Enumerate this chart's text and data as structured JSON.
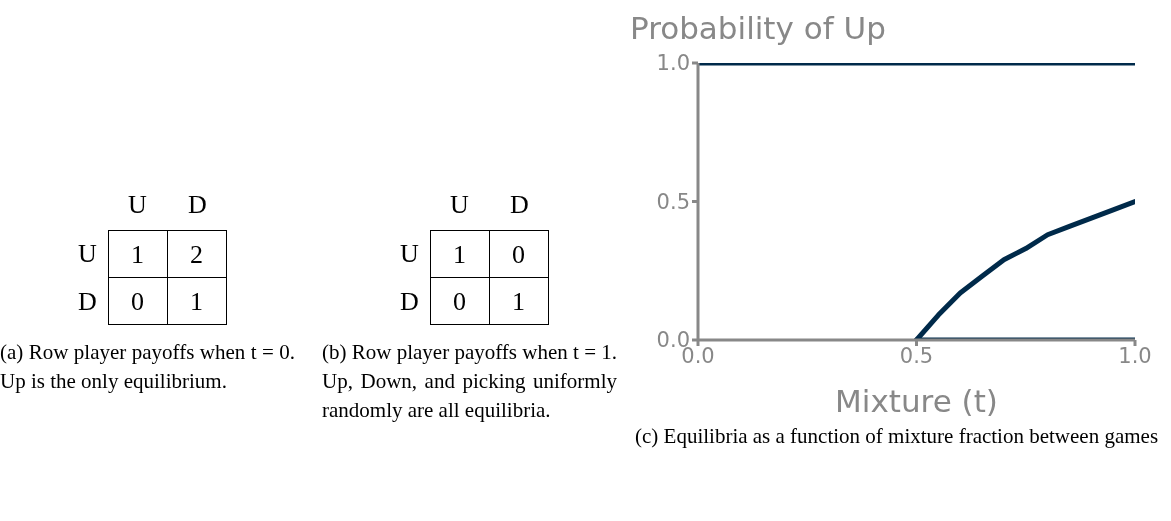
{
  "chart_data": [
    {
      "type": "heatmap",
      "categories": [
        "U",
        "D"
      ],
      "y_categories": [
        "U",
        "D"
      ],
      "cells": [
        [
          1,
          2
        ],
        [
          0,
          1
        ]
      ],
      "data_labels": true,
      "annotations": [
        "(a) Row player payoffs when t = 0. Up is the only equilibrium."
      ]
    },
    {
      "type": "heatmap",
      "categories": [
        "U",
        "D"
      ],
      "y_categories": [
        "U",
        "D"
      ],
      "cells": [
        [
          1,
          0
        ],
        [
          0,
          1
        ]
      ],
      "data_labels": true,
      "annotations": [
        "(b) Row player payoffs when t = 1. Up, Down, and picking uniformly randomly are all equilibria."
      ]
    },
    {
      "type": "line",
      "title": "Probability of Up",
      "xlabel": "Mixture (t)",
      "xlim": [
        0,
        1
      ],
      "ylim": [
        0,
        1
      ],
      "xticks": [
        {
          "value": 0,
          "label": "0.0"
        },
        0.5,
        {
          "value": 1,
          "label": "1.0"
        }
      ],
      "yticks": [
        {
          "value": 0,
          "label": "0.0"
        },
        0.5,
        {
          "value": 1,
          "label": "1.0"
        }
      ],
      "series": [
        {
          "color": "#002a4a",
          "x": [
            0,
            1
          ],
          "values": [
            1,
            1
          ]
        },
        {
          "color": "#002a4a",
          "x": [
            0.5,
            0.55,
            0.6,
            0.65,
            0.7,
            0.75,
            0.8,
            0.85,
            0.9,
            0.95,
            1
          ],
          "values": [
            0,
            0.09,
            0.17,
            0.23,
            0.29,
            0.33,
            0.38,
            0.41,
            0.44,
            0.47,
            0.5
          ]
        },
        {
          "color": "#002a4a",
          "x": [
            0.5,
            1
          ],
          "values": [
            0,
            0
          ]
        }
      ],
      "annotations": [
        "(c) Equilibria as a function of mixture fraction between games"
      ]
    }
  ]
}
